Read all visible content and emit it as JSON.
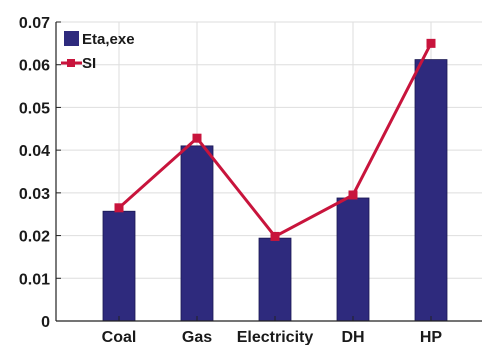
{
  "chart_data": {
    "type": "bar",
    "categories": [
      "Coal",
      "Gas",
      "Electricity",
      "DH",
      "HP"
    ],
    "series": [
      {
        "name": "Eta,exe",
        "type": "bar",
        "color": "#2e2a7d",
        "values": [
          0.0257,
          0.041,
          0.0194,
          0.0288,
          0.0612
        ]
      },
      {
        "name": "SI",
        "type": "line",
        "color": "#c8143c",
        "marker": "square",
        "values": [
          0.0265,
          0.0428,
          0.0198,
          0.0295,
          0.065
        ]
      }
    ],
    "title": "",
    "xlabel": "",
    "ylabel": "",
    "ylim": [
      0,
      0.07
    ],
    "yticks": [
      0,
      0.01,
      0.02,
      0.03,
      0.04,
      0.05,
      0.06,
      0.07
    ],
    "ytick_labels": [
      "0",
      "0.01",
      "0.02",
      "0.03",
      "0.04",
      "0.05",
      "0.06",
      "0.07"
    ],
    "grid": true,
    "legend_position": "top-left"
  }
}
